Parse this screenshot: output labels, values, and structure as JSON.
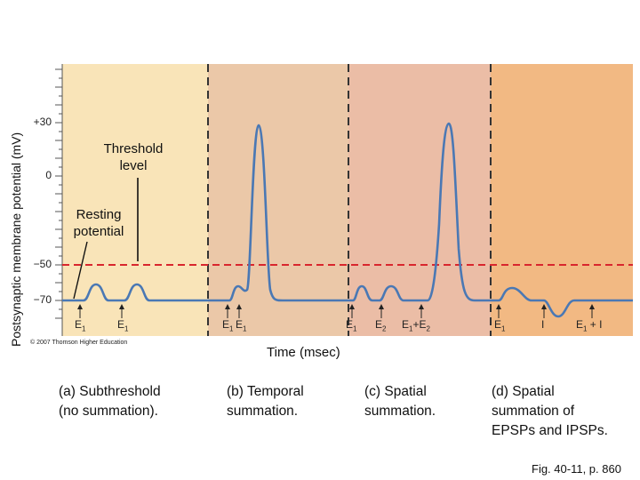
{
  "y_axis_label": "Postsynaptic membrane potential (mV)",
  "x_axis_label": "Time (msec)",
  "y_ticks": [
    {
      "label": "+30",
      "value": 30
    },
    {
      "label": "0",
      "value": 0
    },
    {
      "label": "−50",
      "value": -50
    },
    {
      "label": "−70",
      "value": -70
    }
  ],
  "callouts": {
    "threshold": "Threshold\nlevel",
    "resting": "Resting\npotential"
  },
  "threshold_mv": -50,
  "resting_mv": -70,
  "panels": [
    {
      "caption": "(a) Subthreshold\n(no summation).",
      "color": "#f9e4b8"
    },
    {
      "caption": "(b) Temporal\nsummation.",
      "color": "#ebc8a8"
    },
    {
      "caption": "(c) Spatial\nsummation.",
      "color": "#ebbda6"
    },
    {
      "caption": "(d) Spatial\nsummation of\nEPSPs and IPSPs.",
      "color": "#f2b983"
    }
  ],
  "stimuli": [
    {
      "text": "E",
      "sub": "1"
    },
    {
      "text": "E",
      "sub": "1"
    },
    {
      "text": "E",
      "sub": "1"
    },
    {
      "text": "E",
      "sub": "1"
    },
    {
      "text": "E",
      "sub": "1"
    },
    {
      "text": "E",
      "sub": "2"
    },
    {
      "text": "E",
      "sub": "1",
      "tail": "+E",
      "tail_sub": "2"
    },
    {
      "text": "E",
      "sub": "1"
    },
    {
      "text": "I",
      "sub": ""
    },
    {
      "text": "E",
      "sub": "1",
      "tail": " + I",
      "tail_sub": ""
    }
  ],
  "copyright": "© 2007 Thomson Higher Education",
  "figure_ref": "Fig. 40-11, p. 860",
  "colors": {
    "trace": "#4a78b4",
    "threshold_line": "#d8262e",
    "divider": "#333333",
    "axis": "#555555"
  }
}
